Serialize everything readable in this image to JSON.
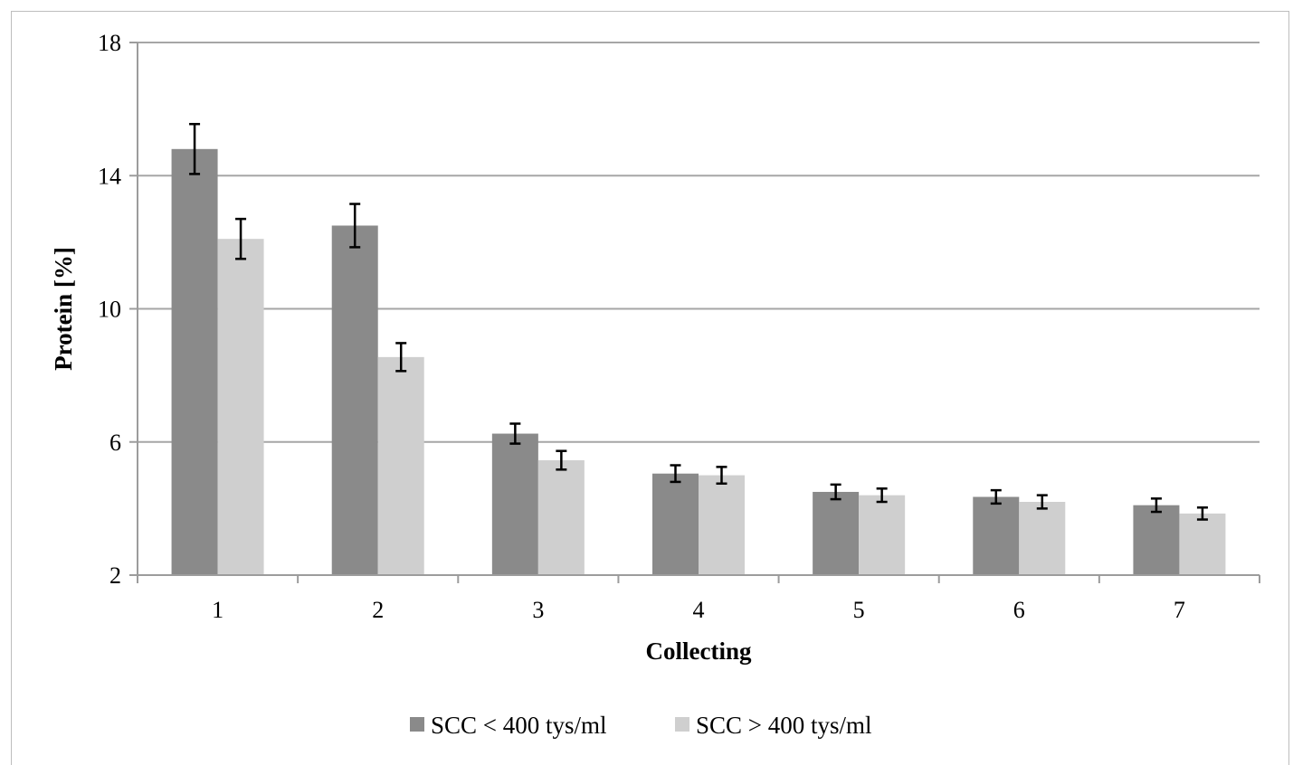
{
  "chart_data": {
    "type": "bar",
    "title": "",
    "xlabel": "Collecting",
    "ylabel": "Protein [%]",
    "categories": [
      "1",
      "2",
      "3",
      "4",
      "5",
      "6",
      "7"
    ],
    "ylim": [
      2,
      18
    ],
    "yticks": [
      "2",
      "6",
      "10",
      "14",
      "18"
    ],
    "grid": true,
    "legend_position": "bottom",
    "series": [
      {
        "name": "SCC < 400 tys/ml",
        "color": "#8a8a8a",
        "values": [
          14.8,
          12.5,
          6.25,
          5.05,
          4.5,
          4.35,
          4.1
        ],
        "errors": [
          0.75,
          0.65,
          0.3,
          0.25,
          0.22,
          0.2,
          0.2
        ]
      },
      {
        "name": "SCC > 400 tys/ml",
        "color": "#cfcfcf",
        "values": [
          12.1,
          8.55,
          5.45,
          5.0,
          4.4,
          4.2,
          3.85
        ],
        "errors": [
          0.6,
          0.42,
          0.28,
          0.25,
          0.2,
          0.2,
          0.18
        ]
      }
    ]
  }
}
